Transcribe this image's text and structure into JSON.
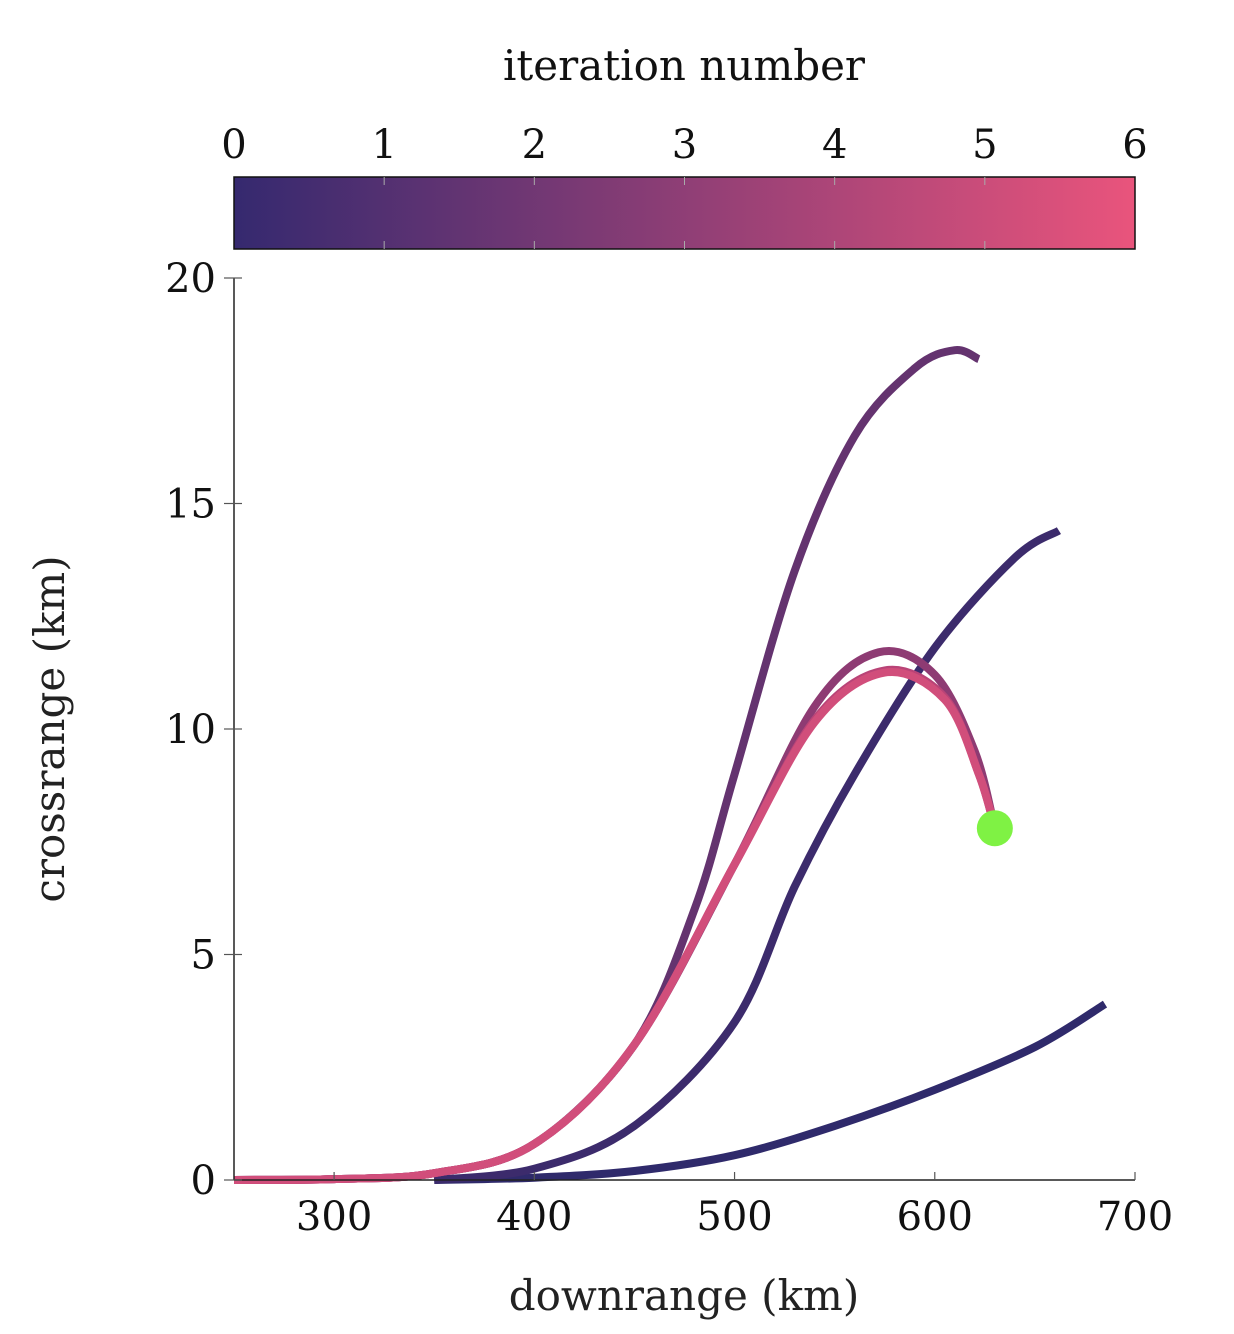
{
  "chart_data": {
    "type": "line",
    "xlabel": "downrange (km)",
    "ylabel": "crossrange (km)",
    "xlim": [
      250,
      700
    ],
    "ylim": [
      0,
      20
    ],
    "xticks": [
      300,
      400,
      500,
      600,
      700
    ],
    "yticks": [
      0,
      5,
      10,
      15,
      20
    ],
    "grid": false,
    "colorbar": {
      "label": "iteration number",
      "range": [
        0,
        6
      ],
      "ticks": [
        0,
        1,
        2,
        3,
        4,
        5,
        6
      ],
      "color_start": "#35296f",
      "color_end": "#e9547c",
      "placement": "top"
    },
    "series": [
      {
        "iteration": 0,
        "color": "#2f2a6b",
        "points": [
          [
            350,
            0
          ],
          [
            400,
            0.05
          ],
          [
            450,
            0.2
          ],
          [
            500,
            0.55
          ],
          [
            550,
            1.2
          ],
          [
            600,
            2.0
          ],
          [
            650,
            2.95
          ],
          [
            685,
            3.9
          ]
        ]
      },
      {
        "iteration": 1,
        "color": "#3c2b6c",
        "points": [
          [
            350,
            0
          ],
          [
            400,
            0.25
          ],
          [
            450,
            1.2
          ],
          [
            500,
            3.5
          ],
          [
            530,
            6.5
          ],
          [
            560,
            9.0
          ],
          [
            600,
            11.8
          ],
          [
            640,
            13.8
          ],
          [
            662,
            14.4
          ]
        ]
      },
      {
        "iteration": 2,
        "color": "#64336f",
        "points": [
          [
            250,
            0
          ],
          [
            300,
            0.02
          ],
          [
            350,
            0.15
          ],
          [
            400,
            0.8
          ],
          [
            450,
            3.0
          ],
          [
            480,
            6.0
          ],
          [
            500,
            9.0
          ],
          [
            530,
            13.5
          ],
          [
            560,
            16.5
          ],
          [
            590,
            18.0
          ],
          [
            610,
            18.4
          ],
          [
            622,
            18.2
          ]
        ]
      },
      {
        "iteration": 3,
        "color": "#8e3b73",
        "points": [
          [
            250,
            0
          ],
          [
            300,
            0.02
          ],
          [
            350,
            0.15
          ],
          [
            400,
            0.8
          ],
          [
            450,
            3.0
          ],
          [
            500,
            7.0
          ],
          [
            540,
            10.5
          ],
          [
            572,
            11.7
          ],
          [
            600,
            11.2
          ],
          [
            620,
            9.5
          ],
          [
            630,
            7.8
          ]
        ]
      },
      {
        "iteration": 4,
        "color": "#b94477",
        "points": [
          [
            250,
            0
          ],
          [
            300,
            0.02
          ],
          [
            350,
            0.15
          ],
          [
            400,
            0.8
          ],
          [
            450,
            3.0
          ],
          [
            500,
            7.0
          ],
          [
            540,
            10.2
          ],
          [
            575,
            11.3
          ],
          [
            605,
            10.7
          ],
          [
            622,
            9.0
          ],
          [
            630,
            7.8
          ]
        ]
      },
      {
        "iteration": 5,
        "color": "#d14e7b",
        "points": [
          [
            250,
            0
          ],
          [
            300,
            0.02
          ],
          [
            350,
            0.15
          ],
          [
            400,
            0.8
          ],
          [
            450,
            3.0
          ],
          [
            500,
            7.0
          ],
          [
            540,
            10.15
          ],
          [
            575,
            11.25
          ],
          [
            605,
            10.65
          ],
          [
            622,
            9.0
          ],
          [
            630,
            7.8
          ]
        ]
      }
    ],
    "endpoint_marker": {
      "x": 630,
      "y": 7.8,
      "color": "#7ff244"
    }
  }
}
